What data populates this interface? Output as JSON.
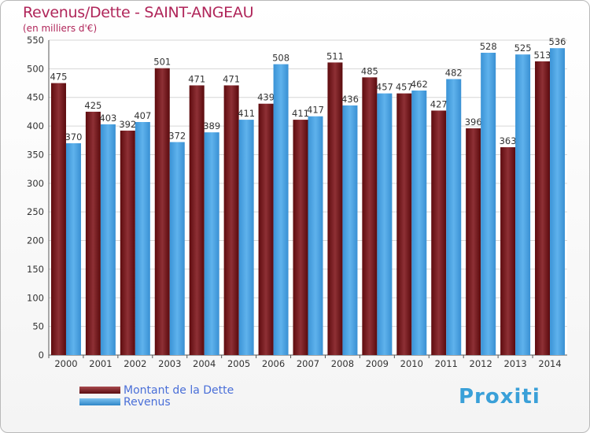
{
  "title": "Revenus/Dette - SAINT-ANGEAU",
  "subtitle": "(en milliers d'€)",
  "brand": "Proxiti",
  "chart_data": {
    "type": "bar",
    "categories": [
      "2000",
      "2001",
      "2002",
      "2003",
      "2004",
      "2005",
      "2006",
      "2007",
      "2008",
      "2009",
      "2010",
      "2011",
      "2012",
      "2013",
      "2014"
    ],
    "series": [
      {
        "name": "Montant de la Dette",
        "color": "#7a1f22",
        "values": [
          475,
          425,
          392,
          501,
          471,
          471,
          439,
          411,
          511,
          485,
          457,
          427,
          396,
          363,
          513
        ]
      },
      {
        "name": "Revenus",
        "color": "#4ba3e3",
        "values": [
          370,
          403,
          407,
          372,
          389,
          411,
          508,
          417,
          436,
          457,
          462,
          482,
          528,
          525,
          536
        ]
      }
    ],
    "yticks": [
      0,
      50,
      100,
      150,
      200,
      250,
      300,
      350,
      400,
      450,
      500,
      550
    ],
    "ylim": [
      0,
      550
    ],
    "grid": true,
    "legend": "bottom-left"
  }
}
